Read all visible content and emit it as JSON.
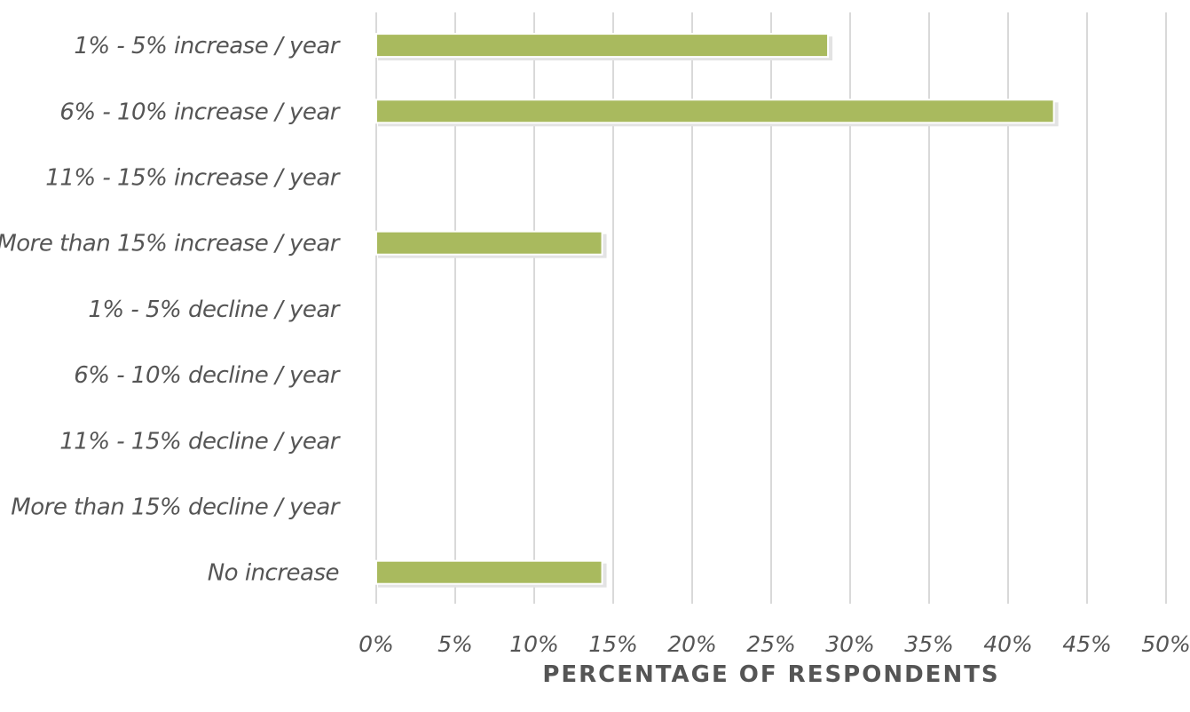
{
  "chart_data": {
    "type": "bar",
    "orientation": "horizontal",
    "categories": [
      "1% - 5% increase / year",
      "6% - 10% increase / year",
      "11% - 15% increase / year",
      "More than 15% increase / year",
      "1% - 5% decline / year",
      "6% - 10% decline / year",
      "11% - 15% decline / year",
      "More than 15% decline / year",
      "No increase"
    ],
    "values": [
      28.6,
      42.9,
      0,
      14.3,
      0,
      0,
      0,
      0,
      14.3
    ],
    "xlabel": "PERCENTAGE OF RESPONDENTS",
    "ylabel": "",
    "xlim": [
      0,
      50
    ],
    "xticks": [
      "0%",
      "5%",
      "10%",
      "15%",
      "20%",
      "25%",
      "30%",
      "35%",
      "40%",
      "45%",
      "50%"
    ],
    "grid": "vertical",
    "legend": "none",
    "bar_color": "#a9ba5e",
    "bar_shadow_color": "#e3e3e3",
    "grid_color": "#d9d9d9",
    "text_color": "#555555"
  }
}
